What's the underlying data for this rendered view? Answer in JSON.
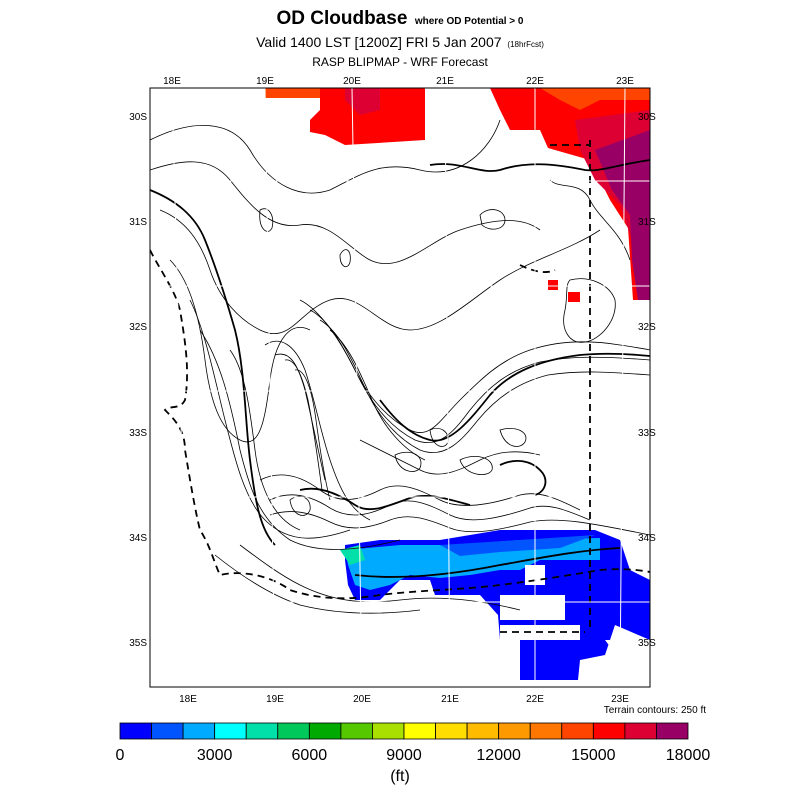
{
  "title": {
    "main": "OD Cloudbase",
    "sub": "where OD Potential > 0",
    "valid": "Valid 1400 LST [1200Z] FRI 5 Jan 2007",
    "forecast": "(18hrFcst)",
    "source": "RASP BLIPMAP - WRF Forecast"
  },
  "map": {
    "lon_labels_top": [
      "18E",
      "19E",
      "20E",
      "21E",
      "22E",
      "23E"
    ],
    "lon_labels_bottom": [
      "18E",
      "19E",
      "20E",
      "21E",
      "22E",
      "23E"
    ],
    "lat_labels_left": [
      "30S",
      "31S",
      "32S",
      "33S",
      "34S",
      "35S"
    ],
    "lat_labels_right": [
      "30S",
      "31S",
      "32S",
      "33S",
      "34S",
      "35S"
    ],
    "terrain_note": "Terrain contours: 250 ft",
    "colors": {
      "frame": "#000000",
      "graticule": "#ffffff",
      "contour": "#000000",
      "coast": "#000000"
    }
  },
  "legend": {
    "colors": [
      "#0000ff",
      "#0055ff",
      "#00aaff",
      "#00ffff",
      "#00e0a8",
      "#00c85a",
      "#00aa00",
      "#55c800",
      "#aae000",
      "#ffff00",
      "#ffdd00",
      "#ffbb00",
      "#ff9900",
      "#ff7700",
      "#ff4400",
      "#ff0000",
      "#dd0033",
      "#990066"
    ],
    "labels": [
      "0",
      "3000",
      "6000",
      "9000",
      "12000",
      "15000",
      "18000"
    ],
    "min": 0,
    "max": 18000,
    "unit": "(ft)"
  }
}
